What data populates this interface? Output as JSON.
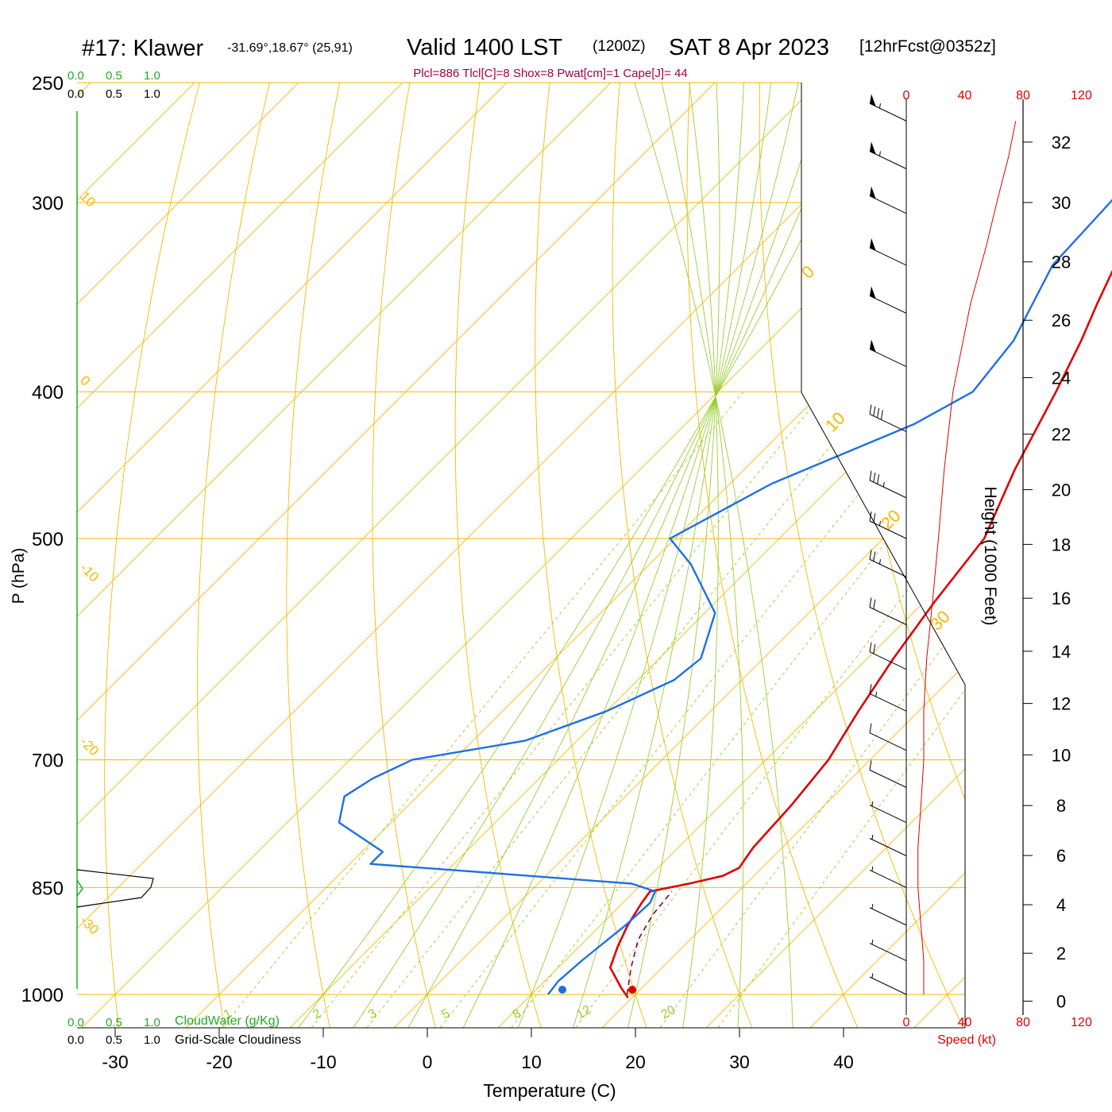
{
  "header": {
    "title_main": "#17: Klawer",
    "title_coords": "-31.69°,18.67° (25,91)",
    "title_valid": "Valid 1400 LST",
    "title_zulu": "(1200Z)",
    "title_date": "SAT 8 Apr 2023",
    "title_fcst": "[12hrFcst@0352z]",
    "params": "Plcl=886 Tlcl[C]=8 Shox=8 Pwat[cm]=1 Cape[J]= 44"
  },
  "colors": {
    "temperature": "#e00000",
    "dewpoint": "#1e6fe6",
    "isobar": "#f5b800",
    "dry_adiabat": "#9acd32",
    "mixing_ratio": "#9acd32",
    "cloudwater": "#22aa22",
    "parcel": "#800040",
    "params_text": "#a0004a",
    "speed": "#e00000"
  },
  "chart_data": {
    "type": "line",
    "subtype": "skew-T log-P sounding",
    "xlabel": "Temperature (C)",
    "ylabel": "P (hPa)",
    "y2label": "Height (1000 Feet)",
    "x_ticks": [
      "-30",
      "-20",
      "-10",
      "0",
      "10",
      "20",
      "30",
      "40"
    ],
    "p_ticks": [
      "250",
      "300",
      "400",
      "500",
      "700",
      "850",
      "1000"
    ],
    "height_ticks": [
      "0",
      "2",
      "4",
      "6",
      "8",
      "10",
      "12",
      "14",
      "16",
      "18",
      "20",
      "22",
      "24",
      "26",
      "28",
      "30",
      "32"
    ],
    "isotherm_labels": [
      "10",
      "0",
      "-10",
      "-20",
      "-30",
      "0",
      "10",
      "20",
      "30"
    ],
    "mixing_ratio_labels": [
      "1",
      "2",
      "3",
      "5",
      "8",
      "12",
      "20"
    ],
    "series": [
      {
        "name": "Temperature",
        "points": [
          [
            1005,
            19.6
          ],
          [
            990,
            18.0
          ],
          [
            960,
            15.0
          ],
          [
            930,
            13.7
          ],
          [
            900,
            12.6
          ],
          [
            870,
            11.8
          ],
          [
            855,
            11.5
          ],
          [
            845,
            14.5
          ],
          [
            835,
            17.0
          ],
          [
            825,
            17.8
          ],
          [
            800,
            17.2
          ],
          [
            750,
            16.8
          ],
          [
            700,
            16.0
          ],
          [
            650,
            14.2
          ],
          [
            600,
            12.5
          ],
          [
            550,
            11.0
          ],
          [
            500,
            9.7
          ],
          [
            450,
            6.0
          ],
          [
            400,
            2.5
          ],
          [
            370,
            0.0
          ],
          [
            350,
            -2.0
          ],
          [
            320,
            -5.0
          ],
          [
            300,
            -8.0
          ],
          [
            280,
            -11.0
          ],
          [
            265,
            -14.0
          ]
        ]
      },
      {
        "name": "Dewpoint",
        "points": [
          [
            1000,
            11.6
          ],
          [
            980,
            11.3
          ],
          [
            950,
            11.6
          ],
          [
            900,
            12.4
          ],
          [
            870,
            12.6
          ],
          [
            855,
            12.0
          ],
          [
            845,
            9.0
          ],
          [
            830,
            -7.0
          ],
          [
            820,
            -18.0
          ],
          [
            805,
            -18.0
          ],
          [
            770,
            -25.0
          ],
          [
            740,
            -27.0
          ],
          [
            720,
            -26.0
          ],
          [
            700,
            -24.0
          ],
          [
            680,
            -15.0
          ],
          [
            650,
            -10.0
          ],
          [
            620,
            -6.5
          ],
          [
            600,
            -6.0
          ],
          [
            560,
            -9.0
          ],
          [
            520,
            -16.0
          ],
          [
            500,
            -20.5
          ],
          [
            460,
            -16.0
          ],
          [
            420,
            -8.0
          ],
          [
            400,
            -5.5
          ],
          [
            370,
            -6.5
          ],
          [
            330,
            -10.0
          ],
          [
            300,
            -10.5
          ],
          [
            280,
            -11.0
          ],
          [
            265,
            -11.5
          ]
        ]
      },
      {
        "name": "Parcel",
        "points": [
          [
            1000,
            19.2
          ],
          [
            960,
            17.0
          ],
          [
            920,
            15.0
          ],
          [
            886,
            14.0
          ],
          [
            855,
            13.6
          ]
        ]
      }
    ],
    "wind_speed_kt": [
      [
        1000,
        12
      ],
      [
        950,
        12
      ],
      [
        900,
        10
      ],
      [
        850,
        8
      ],
      [
        800,
        8
      ],
      [
        750,
        10
      ],
      [
        700,
        12
      ],
      [
        650,
        12
      ],
      [
        600,
        14
      ],
      [
        550,
        18
      ],
      [
        500,
        22
      ],
      [
        450,
        26
      ],
      [
        400,
        32
      ],
      [
        350,
        44
      ],
      [
        320,
        55
      ],
      [
        300,
        62
      ],
      [
        280,
        70
      ],
      [
        265,
        75
      ]
    ],
    "wind_barbs_kt": [
      [
        265,
        55
      ],
      [
        285,
        55
      ],
      [
        305,
        50
      ],
      [
        330,
        50
      ],
      [
        355,
        50
      ],
      [
        385,
        50
      ],
      [
        425,
        40
      ],
      [
        470,
        35
      ],
      [
        500,
        25
      ],
      [
        530,
        25
      ],
      [
        570,
        20
      ],
      [
        610,
        20
      ],
      [
        650,
        15
      ],
      [
        690,
        10
      ],
      [
        730,
        10
      ],
      [
        770,
        5
      ],
      [
        810,
        5
      ],
      [
        850,
        5
      ],
      [
        900,
        5
      ],
      [
        950,
        5
      ],
      [
        1000,
        5
      ]
    ],
    "speed_axis": {
      "label": "Speed (kt)",
      "ticks": [
        "0",
        "40",
        "80",
        "120"
      ]
    },
    "cloud_scale": {
      "cloudwater_label": "CloudWater (g/Kg)",
      "cloudiness_label": "Grid-Scale Cloudiness",
      "ticks": [
        "0.0",
        "0.5",
        "1.0"
      ]
    },
    "xlim": [
      -34,
      36
    ],
    "ylim_hPa": [
      1060,
      250
    ]
  }
}
